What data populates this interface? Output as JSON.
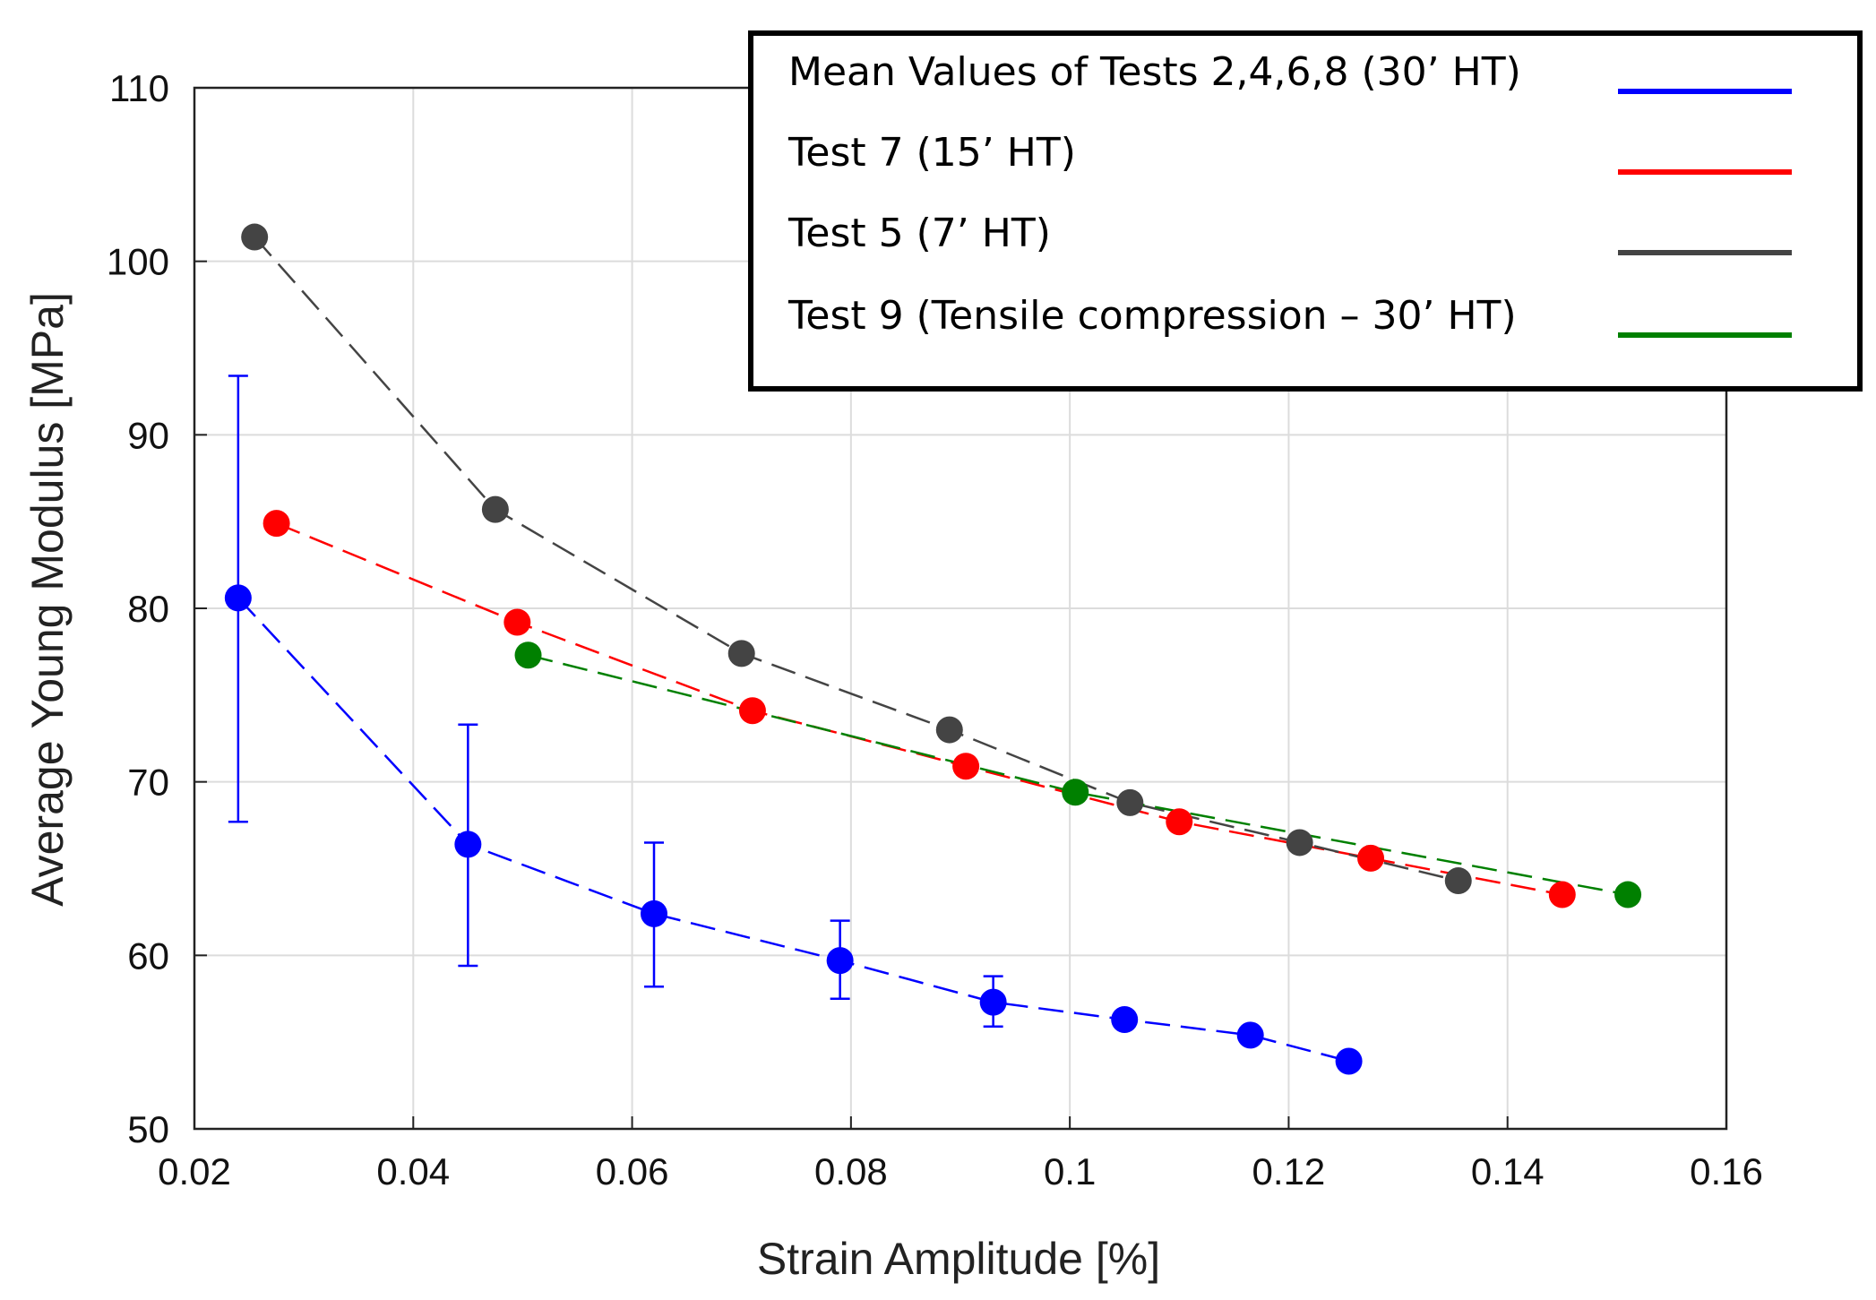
{
  "chart_data": {
    "type": "line",
    "title": "",
    "xlabel": "Strain Amplitude [%]",
    "ylabel": "Average Young Modulus [MPa]",
    "xlim": [
      0.02,
      0.16
    ],
    "ylim": [
      50,
      110
    ],
    "xticks": [
      0.02,
      0.04,
      0.06,
      0.08,
      0.1,
      0.12,
      0.14,
      0.16
    ],
    "xtick_labels": [
      "0.02",
      "0.04",
      "0.06",
      "0.08",
      "0.1",
      "0.12",
      "0.14",
      "0.16"
    ],
    "yticks": [
      50,
      60,
      70,
      80,
      90,
      100,
      110
    ],
    "ytick_labels": [
      "50",
      "60",
      "70",
      "80",
      "90",
      "100",
      "110"
    ],
    "grid": true,
    "legend_position": "top-right",
    "line_style": "dashed",
    "series": [
      {
        "name": "Mean Values of Tests 2,4,6,8 (30’ HT)",
        "color": "#0000ff",
        "x": [
          0.024,
          0.045,
          0.062,
          0.079,
          0.093,
          0.105,
          0.1165,
          0.1255
        ],
        "y": [
          80.6,
          66.4,
          62.4,
          59.7,
          57.3,
          56.3,
          55.4,
          53.9
        ],
        "error_low": [
          67.7,
          59.4,
          58.2,
          57.5,
          55.9,
          null,
          null,
          null
        ],
        "error_high": [
          93.4,
          73.3,
          66.5,
          62.0,
          58.8,
          null,
          null,
          null
        ]
      },
      {
        "name": "Test 7 (15’ HT)",
        "color": "#ff0000",
        "x": [
          0.0275,
          0.0495,
          0.071,
          0.0905,
          0.11,
          0.1275,
          0.145
        ],
        "y": [
          84.9,
          79.2,
          74.1,
          70.9,
          67.7,
          65.6,
          63.5
        ]
      },
      {
        "name": "Test 5 (7’ HT)",
        "color": "#444444",
        "x": [
          0.0255,
          0.0475,
          0.07,
          0.089,
          0.1055,
          0.121,
          0.1355
        ],
        "y": [
          101.4,
          85.7,
          77.4,
          73.0,
          68.8,
          66.5,
          64.3
        ]
      },
      {
        "name": "Test 9 (Tensile compression – 30’ HT)",
        "color": "#008000",
        "x": [
          0.0505,
          0.1005,
          0.151
        ],
        "y": [
          77.3,
          69.4,
          63.5
        ]
      }
    ]
  }
}
